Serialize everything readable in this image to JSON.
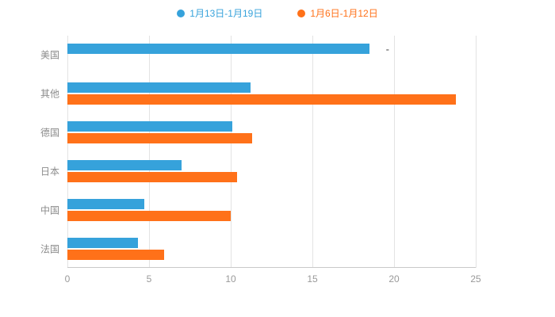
{
  "chart_data": {
    "type": "bar",
    "orientation": "horizontal",
    "title": "",
    "categories": [
      "美国",
      "其他",
      "德国",
      "日本",
      "中国",
      "法国"
    ],
    "series": [
      {
        "name": "1月13日-1月19日",
        "color": "#36A2DB",
        "values": [
          18.5,
          11.2,
          10.1,
          7.0,
          4.7,
          4.3
        ]
      },
      {
        "name": "1月6日-1月12日",
        "color": "#FF7119",
        "values": [
          null,
          23.8,
          11.3,
          10.4,
          10.0,
          5.9
        ]
      }
    ],
    "xlim": [
      0,
      25
    ],
    "xticks": [
      0,
      5,
      10,
      15,
      20,
      25
    ],
    "grid": true,
    "legend_position": "top",
    "annotations": [
      {
        "text": "-",
        "x": 19.6,
        "category_index": 0
      }
    ]
  },
  "colors": {
    "grid": "#e3e3e3",
    "axis": "#c9c9c9",
    "tick_text": "#999999",
    "category_text": "#8c8c8c",
    "background": "#ffffff"
  }
}
